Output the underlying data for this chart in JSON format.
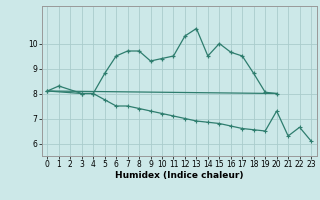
{
  "title": "",
  "xlabel": "Humidex (Indice chaleur)",
  "background_color": "#cce8e8",
  "line_color": "#2e7d6e",
  "grid_color": "#aacccc",
  "x_values": [
    0,
    1,
    2,
    3,
    4,
    5,
    6,
    7,
    8,
    9,
    10,
    11,
    12,
    13,
    14,
    15,
    16,
    17,
    18,
    19,
    20,
    21,
    22,
    23
  ],
  "series1": [
    8.1,
    8.3,
    null,
    8.0,
    8.0,
    8.8,
    9.5,
    9.7,
    9.7,
    9.3,
    9.4,
    9.5,
    10.3,
    10.6,
    9.5,
    10.0,
    9.65,
    9.5,
    8.8,
    8.05,
    8.0,
    null,
    null,
    null
  ],
  "series2_x": [
    0,
    20
  ],
  "series2_y": [
    8.1,
    8.0
  ],
  "series3": [
    8.1,
    null,
    null,
    8.0,
    8.0,
    7.75,
    7.5,
    7.5,
    7.4,
    7.3,
    7.2,
    7.1,
    7.0,
    6.9,
    6.85,
    6.8,
    6.7,
    6.6,
    6.55,
    6.5,
    7.3,
    6.3,
    6.65,
    6.1
  ],
  "xlim": [
    -0.5,
    23.5
  ],
  "ylim": [
    5.5,
    11.5
  ],
  "yticks": [
    6,
    7,
    8,
    9,
    10
  ],
  "xticks": [
    0,
    1,
    2,
    3,
    4,
    5,
    6,
    7,
    8,
    9,
    10,
    11,
    12,
    13,
    14,
    15,
    16,
    17,
    18,
    19,
    20,
    21,
    22,
    23
  ],
  "tick_fontsize": 5.5,
  "xlabel_fontsize": 6.5
}
